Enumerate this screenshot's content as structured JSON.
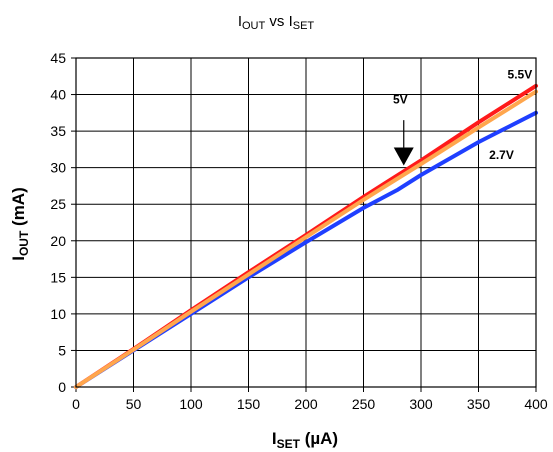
{
  "chart_data": {
    "type": "line",
    "title": {
      "main": "I",
      "sub1": "OUT",
      "mid": " vs I",
      "sub2": "SET"
    },
    "xlabel": {
      "main": "I",
      "sub": "SET",
      "rest": " (µA)"
    },
    "ylabel": {
      "main": "I",
      "sub": "OUT",
      "rest": " (mA)"
    },
    "xlim": [
      0,
      400
    ],
    "ylim": [
      0,
      45
    ],
    "xticks": [
      0,
      50,
      100,
      150,
      200,
      250,
      300,
      350,
      400
    ],
    "yticks": [
      0,
      5,
      10,
      15,
      20,
      25,
      30,
      35,
      40,
      45
    ],
    "grid": true,
    "series": [
      {
        "name": "2.7V",
        "color": "#1f3fff",
        "x": [
          0,
          50,
          100,
          150,
          200,
          250,
          280,
          300,
          350,
          400
        ],
        "y": [
          0,
          5.0,
          10.0,
          15.0,
          19.8,
          24.5,
          27.0,
          29.0,
          33.5,
          37.5
        ]
      },
      {
        "name": "5.5V",
        "color": "#ff1a1a",
        "x": [
          0,
          50,
          100,
          150,
          200,
          250,
          300,
          350,
          400
        ],
        "y": [
          0,
          5.2,
          10.5,
          15.7,
          20.8,
          26.0,
          31.0,
          36.2,
          41.2
        ]
      },
      {
        "name": "5V",
        "color": "#ffa64d",
        "x": [
          0,
          50,
          100,
          150,
          200,
          250,
          300,
          350,
          400
        ],
        "y": [
          0,
          5.1,
          10.3,
          15.4,
          20.5,
          25.6,
          30.5,
          35.5,
          40.4
        ]
      }
    ],
    "annotations": [
      {
        "text": "5.5V",
        "x": 386,
        "y": 42.2
      },
      {
        "text": "5V",
        "x": 282,
        "y": 38.8
      },
      {
        "text": "2.7V",
        "x": 370,
        "y": 31.2
      }
    ],
    "arrow": {
      "x": 285,
      "y_start": 36.5,
      "y_end": 30.3
    }
  }
}
